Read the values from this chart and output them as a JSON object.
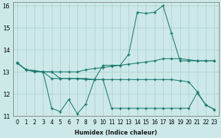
{
  "xlabel": "Humidex (Indice chaleur)",
  "x": [
    0,
    1,
    2,
    3,
    4,
    5,
    6,
    7,
    8,
    9,
    10,
    11,
    12,
    13,
    14,
    15,
    16,
    17,
    18,
    19,
    20,
    21,
    22,
    23
  ],
  "top_line": [
    13.4,
    13.1,
    13.05,
    13.0,
    13.0,
    13.0,
    13.0,
    13.0,
    13.1,
    13.15,
    13.2,
    13.25,
    13.3,
    13.35,
    13.4,
    13.45,
    13.5,
    13.6,
    13.6,
    13.6,
    13.55,
    13.5,
    13.5,
    13.5
  ],
  "mid_line": [
    13.4,
    13.1,
    13.05,
    13.0,
    13.0,
    12.7,
    12.7,
    12.7,
    12.7,
    12.65,
    12.65,
    12.65,
    12.65,
    12.65,
    12.65,
    12.65,
    12.65,
    12.65,
    12.65,
    12.6,
    12.55,
    12.1,
    11.5,
    11.3
  ],
  "hump_line": [
    13.4,
    13.1,
    13.05,
    13.0,
    12.7,
    12.7,
    12.7,
    12.7,
    12.65,
    12.65,
    13.3,
    13.3,
    13.3,
    13.8,
    15.7,
    15.65,
    15.7,
    16.0,
    14.75,
    13.5,
    13.5,
    13.5,
    13.5,
    13.5
  ],
  "bot_line": [
    13.4,
    13.1,
    13.0,
    13.0,
    11.35,
    11.2,
    11.75,
    11.1,
    11.55,
    12.65,
    12.65,
    11.35,
    11.35,
    11.35,
    11.35,
    11.35,
    11.35,
    11.35,
    11.35,
    11.35,
    11.35,
    12.05,
    11.5,
    11.3
  ],
  "ylim": [
    11.0,
    16.15
  ],
  "yticks": [
    11,
    12,
    13,
    14,
    15,
    16
  ],
  "color": "#1a7a6e",
  "bg_color": "#cce8e8",
  "grid_color": "#aacccc"
}
